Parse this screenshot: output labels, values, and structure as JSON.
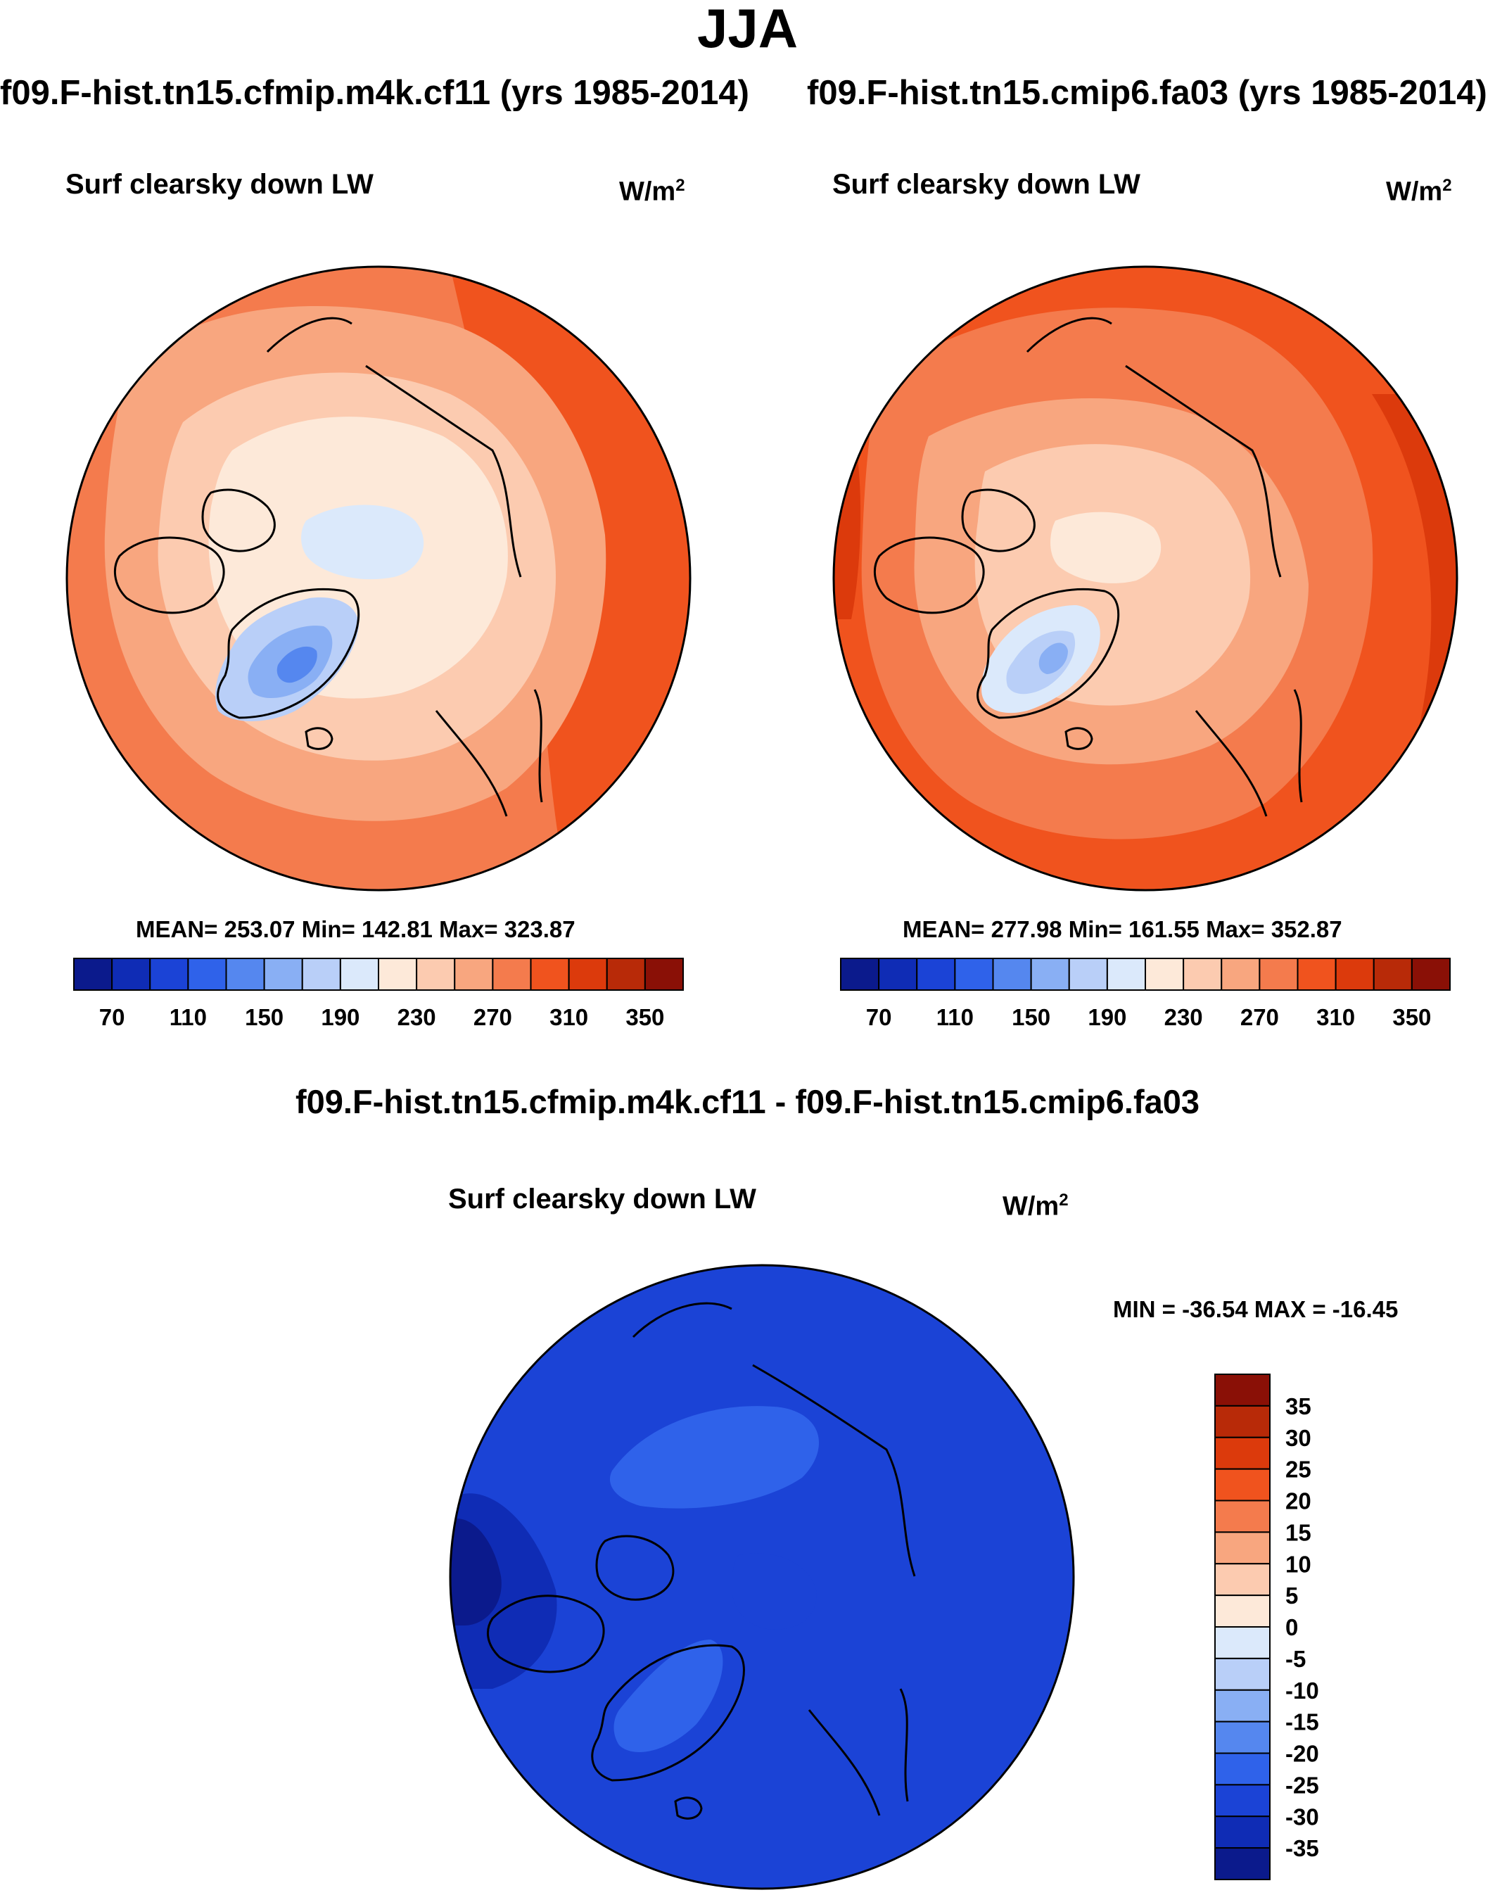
{
  "figure": {
    "season": "JJA",
    "panels": [
      {
        "id": "case-a",
        "title": "f09.F-hist.tn15.cfmip.m4k.cf11 (yrs 1985-2014)",
        "variable": "Surf clearsky down LW",
        "units_base": "W/m",
        "units_exp": "2",
        "stats_text": "MEAN= 253.07  Min= 142.81  Max= 323.87",
        "colorbar_ticks": [
          "70",
          "110",
          "150",
          "190",
          "230",
          "270",
          "310",
          "350"
        ]
      },
      {
        "id": "case-b",
        "title": "f09.F-hist.tn15.cmip6.fa03 (yrs 1985-2014)",
        "variable": "Surf clearsky down LW",
        "units_base": "W/m",
        "units_exp": "2",
        "stats_text": "MEAN= 277.98  Min= 161.55  Max= 352.87",
        "colorbar_ticks": [
          "70",
          "110",
          "150",
          "190",
          "230",
          "270",
          "310",
          "350"
        ]
      }
    ],
    "difference": {
      "title": "f09.F-hist.tn15.cfmip.m4k.cf11 - f09.F-hist.tn15.cmip6.fa03",
      "variable": "Surf clearsky down LW",
      "units_base": "W/m",
      "units_exp": "2",
      "stats_text": "MIN = -36.54 MAX = -16.45",
      "colorbar_ticks": [
        "35",
        "30",
        "25",
        "20",
        "15",
        "10",
        "5",
        "0",
        "-5",
        "-10",
        "-15",
        "-20",
        "-25",
        "-30",
        "-35"
      ]
    },
    "colors": {
      "abs_palette": [
        "#0b1a8c",
        "#0f2cb5",
        "#1b43d6",
        "#2f62ea",
        "#5587ef",
        "#89aff4",
        "#b9cff8",
        "#dbe9fb",
        "#fde9d9",
        "#fccbb0",
        "#f8a67f",
        "#f47b4d",
        "#f0531e",
        "#dc3a0c",
        "#b82a08",
        "#8a1006"
      ],
      "diff_palette": [
        "#8a1006",
        "#b82a08",
        "#dc3a0c",
        "#f0531e",
        "#f47b4d",
        "#f8a67f",
        "#fccbb0",
        "#fde9d9",
        "#dbe9fb",
        "#b9cff8",
        "#89aff4",
        "#5587ef",
        "#2f62ea",
        "#1b43d6",
        "#0f2cb5",
        "#0b1a8c"
      ],
      "coastline": "#000000"
    }
  }
}
